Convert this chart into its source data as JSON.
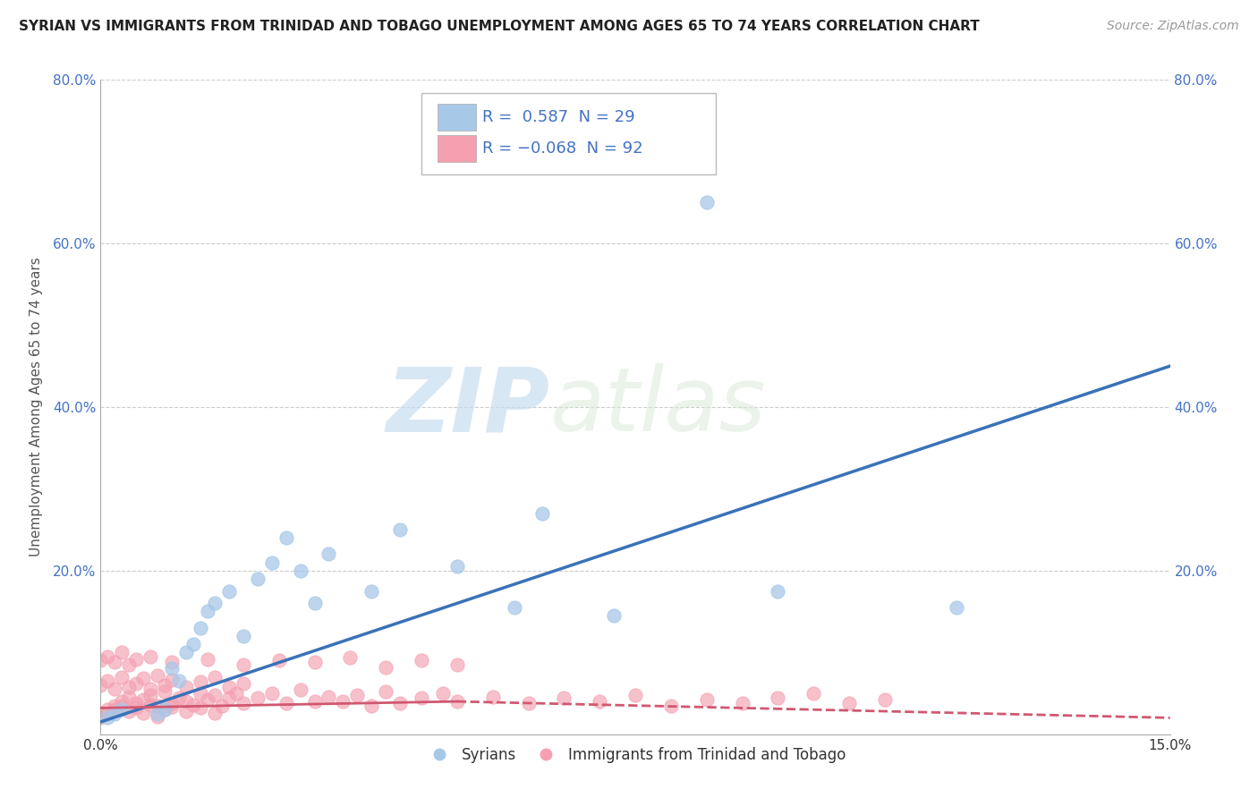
{
  "title": "SYRIAN VS IMMIGRANTS FROM TRINIDAD AND TOBAGO UNEMPLOYMENT AMONG AGES 65 TO 74 YEARS CORRELATION CHART",
  "source": "Source: ZipAtlas.com",
  "ylabel": "Unemployment Among Ages 65 to 74 years",
  "xlim": [
    0.0,
    0.15
  ],
  "ylim": [
    0.0,
    0.8
  ],
  "xtick_positions": [
    0.0,
    0.15
  ],
  "xtick_labels": [
    "0.0%",
    "15.0%"
  ],
  "ytick_positions": [
    0.0,
    0.2,
    0.4,
    0.6,
    0.8
  ],
  "ytick_labels": [
    "",
    "20.0%",
    "40.0%",
    "60.0%",
    "80.0%"
  ],
  "syrian_r": 0.587,
  "syrian_n": 29,
  "tt_r": -0.068,
  "tt_n": 92,
  "syrian_color": "#a8c8e8",
  "tt_color": "#f4a0b0",
  "syrian_line_color": "#3a72b8",
  "tt_line_color": "#d05870",
  "syrian_scatter_x": [
    0.001,
    0.002,
    0.003,
    0.008,
    0.009,
    0.01,
    0.011,
    0.012,
    0.013,
    0.014,
    0.015,
    0.016,
    0.018,
    0.02,
    0.022,
    0.024,
    0.026,
    0.028,
    0.03,
    0.032,
    0.038,
    0.042,
    0.05,
    0.058,
    0.062,
    0.072,
    0.085,
    0.095,
    0.12
  ],
  "syrian_scatter_y": [
    0.02,
    0.025,
    0.03,
    0.025,
    0.03,
    0.08,
    0.065,
    0.1,
    0.11,
    0.13,
    0.15,
    0.16,
    0.175,
    0.12,
    0.19,
    0.21,
    0.24,
    0.2,
    0.16,
    0.22,
    0.175,
    0.25,
    0.205,
    0.155,
    0.27,
    0.145,
    0.65,
    0.175,
    0.155
  ],
  "tt_scatter_x": [
    0.001,
    0.002,
    0.003,
    0.004,
    0.005,
    0.006,
    0.007,
    0.008,
    0.009,
    0.01,
    0.011,
    0.012,
    0.013,
    0.014,
    0.015,
    0.016,
    0.017,
    0.018,
    0.019,
    0.02,
    0.022,
    0.024,
    0.026,
    0.028,
    0.03,
    0.032,
    0.034,
    0.036,
    0.038,
    0.04,
    0.042,
    0.045,
    0.048,
    0.05,
    0.055,
    0.06,
    0.065,
    0.07,
    0.075,
    0.08,
    0.085,
    0.09,
    0.095,
    0.1,
    0.105,
    0.11,
    0.0,
    0.001,
    0.002,
    0.003,
    0.004,
    0.005,
    0.006,
    0.007,
    0.008,
    0.009,
    0.01,
    0.012,
    0.014,
    0.016,
    0.0,
    0.001,
    0.002,
    0.003,
    0.004,
    0.005,
    0.006,
    0.007,
    0.008,
    0.009,
    0.01,
    0.012,
    0.014,
    0.016,
    0.018,
    0.02,
    0.0,
    0.001,
    0.002,
    0.003,
    0.004,
    0.005,
    0.007,
    0.01,
    0.015,
    0.02,
    0.025,
    0.03,
    0.035,
    0.04,
    0.045,
    0.05
  ],
  "tt_scatter_y": [
    0.03,
    0.035,
    0.04,
    0.045,
    0.038,
    0.042,
    0.048,
    0.035,
    0.052,
    0.038,
    0.044,
    0.04,
    0.036,
    0.05,
    0.042,
    0.048,
    0.035,
    0.044,
    0.05,
    0.038,
    0.044,
    0.05,
    0.038,
    0.054,
    0.04,
    0.046,
    0.04,
    0.048,
    0.035,
    0.052,
    0.038,
    0.044,
    0.05,
    0.04,
    0.046,
    0.038,
    0.044,
    0.04,
    0.048,
    0.035,
    0.042,
    0.038,
    0.044,
    0.05,
    0.038,
    0.042,
    0.02,
    0.025,
    0.03,
    0.035,
    0.028,
    0.032,
    0.026,
    0.036,
    0.022,
    0.03,
    0.034,
    0.028,
    0.032,
    0.026,
    0.06,
    0.065,
    0.055,
    0.07,
    0.058,
    0.062,
    0.068,
    0.055,
    0.072,
    0.06,
    0.066,
    0.058,
    0.064,
    0.07,
    0.058,
    0.062,
    0.09,
    0.095,
    0.088,
    0.1,
    0.085,
    0.092,
    0.095,
    0.088,
    0.092,
    0.085,
    0.09,
    0.088,
    0.094,
    0.082,
    0.09,
    0.085
  ],
  "watermark_zip": "ZIP",
  "watermark_atlas": "atlas",
  "background_color": "#ffffff",
  "grid_color": "#cccccc",
  "legend_labels": [
    "Syrians",
    "Immigrants from Trinidad and Tobago"
  ],
  "title_fontsize": 11,
  "label_fontsize": 11,
  "tick_fontsize": 11
}
